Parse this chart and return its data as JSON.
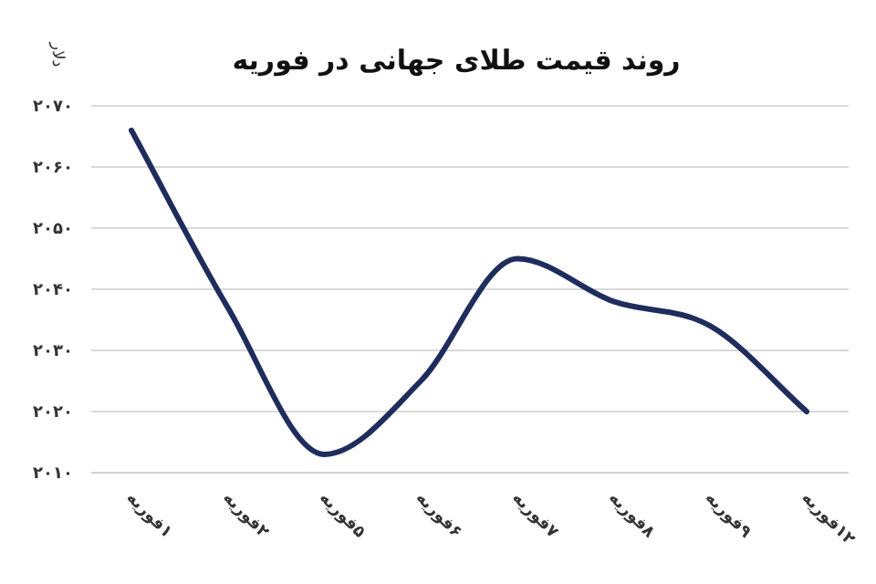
{
  "chart_data": {
    "type": "line",
    "title": "روند قیمت طلای جهانی در فوریه",
    "ylabel": "دلار",
    "categories": [
      "۱فوریه",
      "۲فوریه",
      "۵فوریه",
      "۶فوریه",
      "۷فوریه",
      "۸فوریه",
      "۹فوریه",
      "۱۲فوریه"
    ],
    "series": [
      {
        "color": "#1f2d5c",
        "values": [
          2066,
          2037,
          2013,
          2025,
          2045,
          2038,
          2034,
          2020
        ]
      }
    ],
    "ylim": [
      2010,
      2070
    ],
    "yticks": [
      {
        "value": 2010,
        "label": "۲۰۱۰"
      },
      {
        "value": 2020,
        "label": "۲۰۲۰"
      },
      {
        "value": 2030,
        "label": "۲۰۳۰"
      },
      {
        "value": 2040,
        "label": "۲۰۴۰"
      },
      {
        "value": 2050,
        "label": "۲۰۵۰"
      },
      {
        "value": 2060,
        "label": "۲۰۶۰"
      },
      {
        "value": 2070,
        "label": "۲۰۷۰"
      }
    ],
    "grid": "y",
    "marker": "none",
    "line_style": "solid"
  }
}
